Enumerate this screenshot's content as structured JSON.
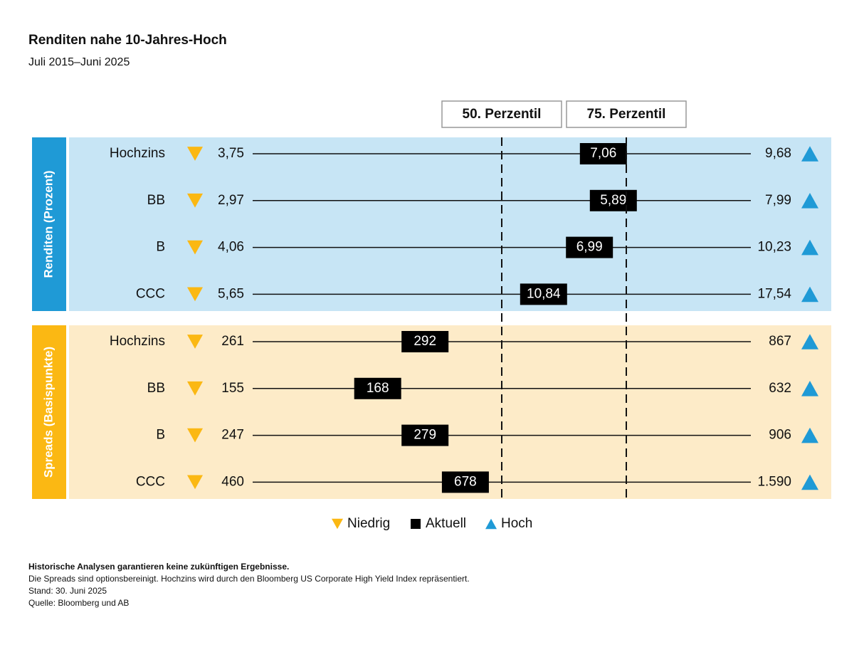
{
  "chart_data": {
    "type": "percentile-range",
    "title": "Renditen nahe 10-Jahres-Hoch",
    "subtitle": "Juli 2015–Juni 2025",
    "xlim": [
      0,
      100
    ],
    "reference_lines": [
      {
        "value": 50,
        "label": "50. Perzentil"
      },
      {
        "value": 75,
        "label": "75. Perzentil"
      }
    ],
    "legend": [
      {
        "name": "Niedrig",
        "color": "#fbb813"
      },
      {
        "name": "Aktuell",
        "color": "#000000"
      },
      {
        "name": "Hoch",
        "color": "#1f9ad6"
      }
    ],
    "groups": [
      {
        "name": "Renditen (Prozent)",
        "color": "#c7e5f5",
        "accent": "#1f9ad6",
        "rows": [
          {
            "category": "Hochzins",
            "low": 3.75,
            "low_label": "3,75",
            "current": 7.06,
            "current_label": "7,06",
            "high": 9.68,
            "high_label": "9,68",
            "percentile": 70.4
          },
          {
            "category": "BB",
            "low": 2.97,
            "low_label": "2,97",
            "current": 5.89,
            "current_label": "5,89",
            "high": 7.99,
            "high_label": "7,99",
            "percentile": 72.4
          },
          {
            "category": "B",
            "low": 4.06,
            "low_label": "4,06",
            "current": 6.99,
            "current_label": "6,99",
            "high": 10.23,
            "high_label": "10,23",
            "percentile": 67.6
          },
          {
            "category": "CCC",
            "low": 5.65,
            "low_label": "5,65",
            "current": 10.84,
            "current_label": "10,84",
            "high": 17.54,
            "high_label": "17,54",
            "percentile": 58.4
          }
        ]
      },
      {
        "name": "Spreads (Basispunkte)",
        "color": "#fdebc8",
        "accent": "#fbb813",
        "rows": [
          {
            "category": "Hochzins",
            "low": 261,
            "current": 292,
            "high": 867,
            "percentile": 34.6
          },
          {
            "category": "BB",
            "low": 155,
            "current": 168,
            "high": 632,
            "percentile": 25.1
          },
          {
            "category": "B",
            "low": 247,
            "current": 279,
            "high": 906,
            "percentile": 34.6
          },
          {
            "category": "CCC",
            "low": 460,
            "current": 678,
            "high": 1590,
            "high_label": "1.590",
            "percentile": 42.7
          }
        ]
      }
    ],
    "notes": [
      "Historische Analysen garantieren keine zukünftigen Ergebnisse.",
      "Die Spreads sind optionsbereinigt. Hochzins wird durch den Bloomberg US Corporate High Yield Index repräsentiert.",
      "Stand: 30. Juni 2025",
      "Quelle: Bloomberg und AB"
    ]
  }
}
